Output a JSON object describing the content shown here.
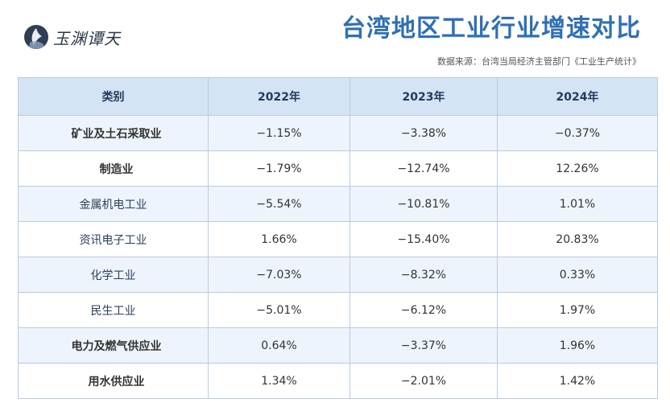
{
  "header": {
    "logo_text": "玉渊谭天",
    "title": "台湾地区工业行业增速对比",
    "source": "数据来源：台湾当局经济主管部门《工业生产统计》"
  },
  "colors": {
    "title": "#2f6fb4",
    "header_bg": "#d5e4f4",
    "row_alt": "#eef4fb",
    "negative": "#c0282c",
    "category": "#1e3c66"
  },
  "chart_data": {
    "type": "table",
    "title": "台湾地区工业行业增速对比",
    "columns": [
      "类别",
      "2022年",
      "2023年",
      "2024年"
    ],
    "rows": [
      {
        "category": "矿业及土石采取业",
        "level": 0,
        "values": [
          "−1.15%",
          "−3.38%",
          "−0.37%"
        ]
      },
      {
        "category": "制造业",
        "level": 0,
        "values": [
          "−1.79%",
          "−12.74%",
          "12.26%"
        ]
      },
      {
        "category": "金属机电工业",
        "level": 1,
        "values": [
          "−5.54%",
          "−10.81%",
          "1.01%"
        ]
      },
      {
        "category": "资讯电子工业",
        "level": 1,
        "values": [
          "1.66%",
          "−15.40%",
          "20.83%"
        ]
      },
      {
        "category": "化学工业",
        "level": 1,
        "values": [
          "−7.03%",
          "−8.32%",
          "0.33%"
        ]
      },
      {
        "category": "民生工业",
        "level": 1,
        "values": [
          "−5.01%",
          "−6.12%",
          "1.97%"
        ]
      },
      {
        "category": "电力及燃气供应业",
        "level": 0,
        "values": [
          "0.64%",
          "−3.37%",
          "1.96%"
        ]
      },
      {
        "category": "用水供应业",
        "level": 0,
        "values": [
          "1.34%",
          "−2.01%",
          "1.42%"
        ]
      }
    ]
  }
}
